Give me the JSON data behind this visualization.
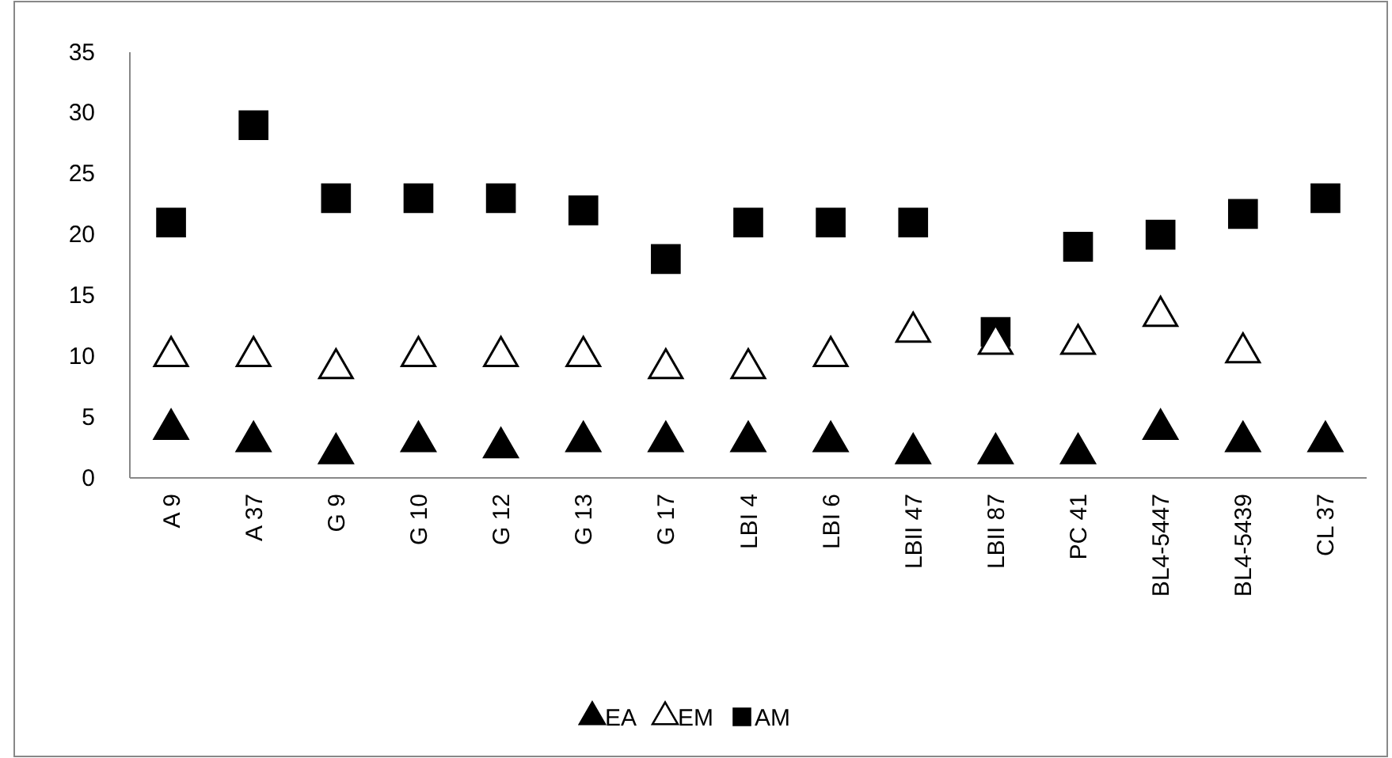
{
  "chart_data": {
    "type": "scatter",
    "categories": [
      "A 9",
      "A 37",
      "G 9",
      "G 10",
      "G 12",
      "G 13",
      "G 17",
      "LBI 4",
      "LBI 6",
      "LBII 47",
      "LBII 87",
      "PC 41",
      "BL4-5447",
      "BL4-5439",
      "CL 37"
    ],
    "series": [
      {
        "name": "EA",
        "color": "#000000",
        "marker": "triangle",
        "values": [
          4,
          3,
          2,
          3,
          2.5,
          3,
          3,
          3,
          3,
          2,
          2,
          2,
          4,
          3,
          3
        ]
      },
      {
        "name": "EM",
        "color": "#ffffff",
        "marker": "triangle",
        "values": [
          10,
          10,
          9,
          10,
          10,
          10,
          9,
          9,
          10,
          12,
          11,
          11,
          13.3,
          10.3,
          null
        ]
      },
      {
        "name": "AM",
        "color": "#000000",
        "marker": "square",
        "values": [
          21,
          29,
          23,
          23,
          23,
          22,
          18,
          21,
          21,
          21,
          12,
          19,
          20,
          21.7,
          23
        ]
      }
    ],
    "ylim": [
      0,
      35
    ],
    "yticks": [
      0,
      5,
      10,
      15,
      20,
      25,
      30,
      35
    ],
    "grid": false,
    "legend": "bottom"
  }
}
